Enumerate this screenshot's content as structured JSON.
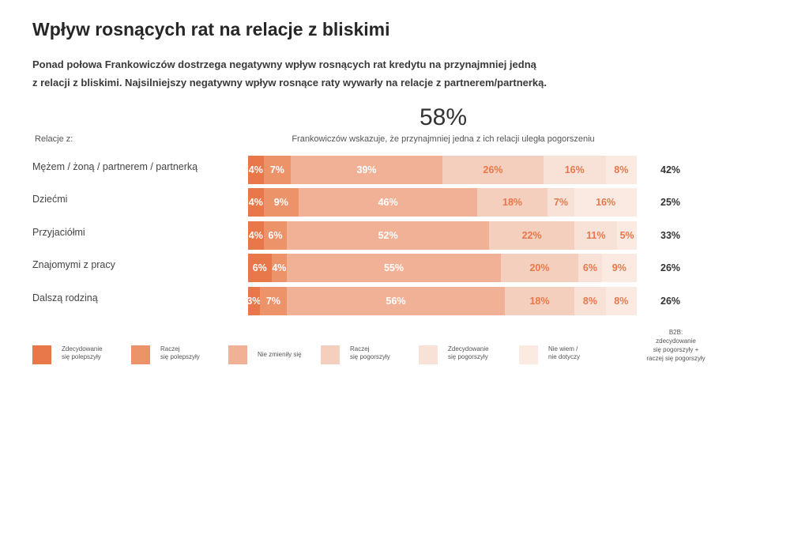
{
  "header": {
    "title": "Wpływ rosnących rat na relacje z bliskimi",
    "subtitle_line1": "Ponad połowa Frankowiczów dostrzega negatywny wpływ rosnących rat kredytu na przynajmniej jedną",
    "subtitle_line2": "z relacji z bliskimi. Najsilniejszy negatywny wpływ rosnące raty wywarły na relacje z partnerem/partnerką."
  },
  "headline": {
    "value": "58%",
    "caption": "Frankowiczów wskazuje, że przynajmniej jedna z ich relacji uległa pogorszeniu"
  },
  "rows_label": "Relacje z:",
  "chart_data": {
    "type": "bar",
    "orientation": "horizontal",
    "stacked": true,
    "percent_normalized": true,
    "categories": [
      "Mężem / żoną / partnerem / partnerką",
      "Dziećmi",
      "Przyjaciółmi",
      "Znajomymi z pracy",
      "Dalszą rodziną"
    ],
    "series": [
      {
        "name": "Zdecydowanie się polepszyły",
        "values": [
          4,
          4,
          4,
          6,
          3
        ],
        "color": "#e8784a"
      },
      {
        "name": "Raczej się polepszyły",
        "values": [
          7,
          9,
          6,
          4,
          7
        ],
        "color": "#ec936a"
      },
      {
        "name": "Nie zmieniły się",
        "values": [
          39,
          46,
          52,
          55,
          56
        ],
        "color": "#f0b196"
      },
      {
        "name": "Raczej się pogorszyły",
        "values": [
          26,
          18,
          22,
          20,
          18
        ],
        "color": "#f5cfbd"
      },
      {
        "name": "Zdecydowanie się pogorszyły",
        "values": [
          16,
          7,
          11,
          6,
          8
        ],
        "color": "#f8e2d7"
      },
      {
        "name": "Nie wiem / nie dotyczy",
        "values": [
          8,
          16,
          5,
          9,
          8
        ],
        "color": "#faeae2"
      }
    ],
    "b2b": {
      "label_line1": "B2B:",
      "label_line2": "zdecydowanie",
      "label_line3": "się pogorszyły +",
      "label_line4": "raczej się pogorszyły",
      "values": [
        42,
        25,
        33,
        26,
        26
      ]
    }
  },
  "legend": [
    {
      "line1": "Zdecydowanie",
      "line2": "się polepszyły"
    },
    {
      "line1": "Raczej",
      "line2": "się polepszyły"
    },
    {
      "line1": "Nie zmieniły się",
      "line2": ""
    },
    {
      "line1": "Raczej",
      "line2": "się pogorszyły"
    },
    {
      "line1": "Zdecydowanie",
      "line2": "się pogorszyły"
    },
    {
      "line1": "Nie wiem /",
      "line2": "nie dotyczy"
    }
  ],
  "colors": {
    "label_on_dark": "#ffffff",
    "label_on_light": "#e8784a"
  }
}
